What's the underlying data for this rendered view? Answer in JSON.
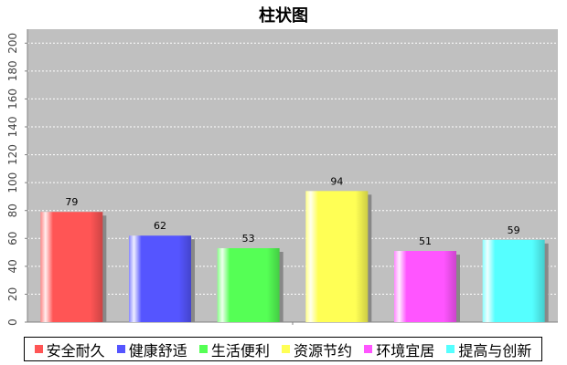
{
  "chart_data": {
    "type": "bar",
    "title": "柱状图",
    "categories": [
      "安全耐久",
      "健康舒适",
      "生活便利",
      "资源节约",
      "环境宜居",
      "提高与创新"
    ],
    "values": [
      79,
      62,
      53,
      94,
      51,
      59
    ],
    "colors": [
      "#ff5555",
      "#5555ff",
      "#55ff55",
      "#ffff55",
      "#ff55ff",
      "#55ffff"
    ],
    "ylim": [
      0,
      210
    ],
    "yticks": [
      0,
      20,
      40,
      60,
      80,
      100,
      120,
      140,
      160,
      180,
      200
    ],
    "xlabel": "",
    "ylabel": "",
    "grid": true,
    "legend_position": "bottom",
    "background": "#c0c0c0"
  }
}
